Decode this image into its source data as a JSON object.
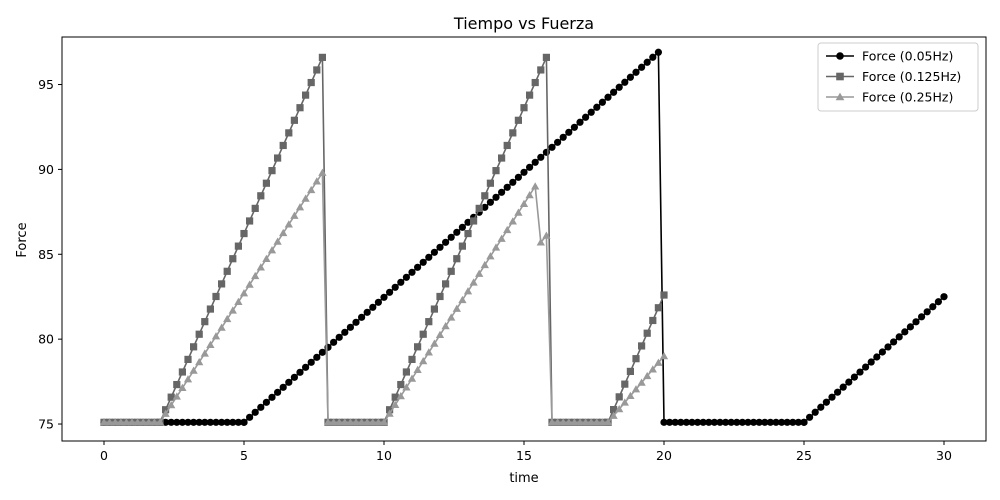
{
  "chart_data": {
    "type": "line",
    "title": "Tiempo vs Fuerza",
    "xlabel": "time",
    "ylabel": "Force",
    "xlim": [
      -1.5,
      31.5
    ],
    "ylim": [
      74.0,
      97.8
    ],
    "xticks": [
      0,
      5,
      10,
      15,
      20,
      25,
      30
    ],
    "yticks": [
      75,
      80,
      85,
      90,
      95
    ],
    "grid": false,
    "legend_position": "top-right",
    "series": [
      {
        "name": "Force (0.05Hz)",
        "color": "#000000",
        "marker": "circle",
        "step": 0.2,
        "segments": [
          {
            "x0": 0,
            "x1": 5,
            "y0": 75.1,
            "y1": 75.1
          },
          {
            "x0": 5,
            "x1": 19.8,
            "y0": 75.1,
            "y1": 96.9
          },
          {
            "x0": 20,
            "x1": 25,
            "y0": 75.1,
            "y1": 75.1
          },
          {
            "x0": 25,
            "x1": 30,
            "y0": 75.1,
            "y1": 82.5
          }
        ]
      },
      {
        "name": "Force (0.125Hz)",
        "color": "#666666",
        "marker": "square",
        "step": 0.2,
        "segments": [
          {
            "x0": 0,
            "x1": 2,
            "y0": 75.1,
            "y1": 75.1
          },
          {
            "x0": 2,
            "x1": 7.8,
            "y0": 75.1,
            "y1": 96.6
          },
          {
            "x0": 8,
            "x1": 10,
            "y0": 75.1,
            "y1": 75.1
          },
          {
            "x0": 10,
            "x1": 15.8,
            "y0": 75.1,
            "y1": 96.6
          },
          {
            "x0": 16,
            "x1": 18,
            "y0": 75.1,
            "y1": 75.1
          },
          {
            "x0": 18,
            "x1": 20,
            "y0": 75.1,
            "y1": 82.6
          }
        ]
      },
      {
        "name": "Force (0.25Hz)",
        "color": "#999999",
        "marker": "triangle",
        "step": 0.2,
        "segments": [
          {
            "x0": 0,
            "x1": 2,
            "y0": 75.1,
            "y1": 75.1
          },
          {
            "x0": 2,
            "x1": 7.8,
            "y0": 75.1,
            "y1": 89.8
          },
          {
            "x0": 8,
            "x1": 10,
            "y0": 75.1,
            "y1": 75.1
          },
          {
            "x0": 10,
            "x1": 15.4,
            "y0": 75.1,
            "y1": 89.0
          },
          {
            "x0": 15.6,
            "x1": 15.8,
            "y0": 85.7,
            "y1": 86.1
          },
          {
            "x0": 16,
            "x1": 18,
            "y0": 75.1,
            "y1": 75.1
          },
          {
            "x0": 18,
            "x1": 20,
            "y0": 75.1,
            "y1": 79.0
          }
        ]
      }
    ]
  }
}
